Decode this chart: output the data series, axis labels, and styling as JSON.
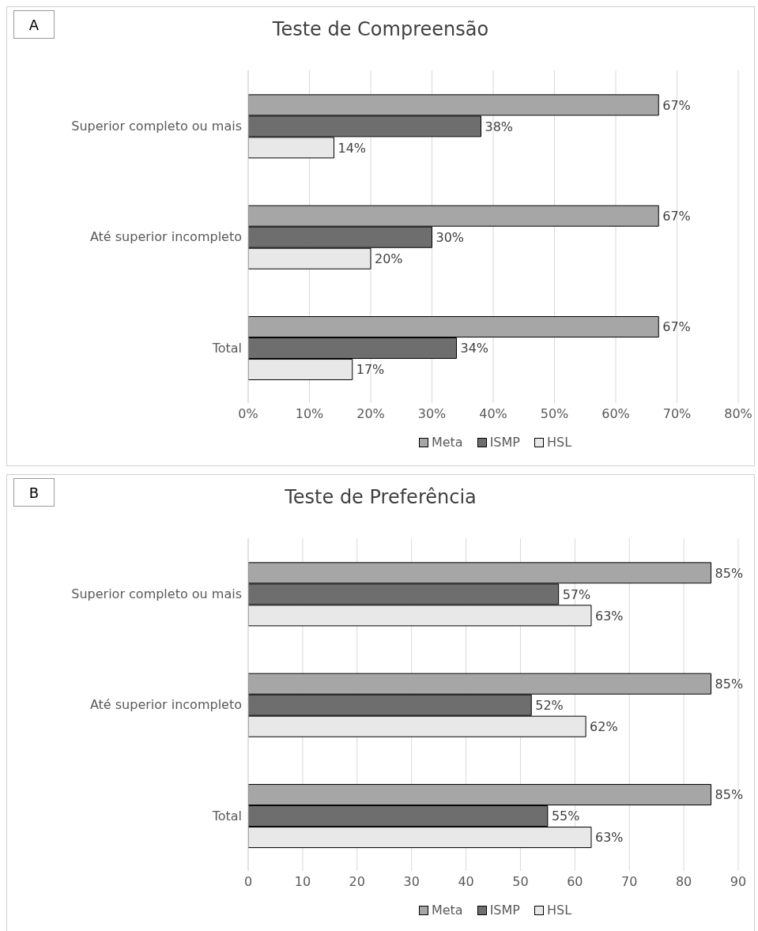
{
  "chart_data": [
    {
      "type": "bar",
      "orientation": "horizontal",
      "title": "Teste de Compreensão",
      "annotations": [
        "A"
      ],
      "categories": [
        "Superior completo ou mais",
        "Até superior incompleto",
        "Total"
      ],
      "series": [
        {
          "name": "Meta",
          "color": "#a6a6a6",
          "values": [
            67,
            67,
            67
          ],
          "value_labels": [
            "67%",
            "67%",
            "67%"
          ]
        },
        {
          "name": "ISMP",
          "color": "#6e6e6e",
          "values": [
            38,
            30,
            34
          ],
          "value_labels": [
            "38%",
            "30%",
            "34%"
          ]
        },
        {
          "name": "HSL",
          "color": "#e8e8e8",
          "values": [
            14,
            20,
            17
          ],
          "value_labels": [
            "14%",
            "20%",
            "17%"
          ]
        }
      ],
      "xlim": [
        0,
        80
      ],
      "xticks": [
        {
          "value": 0,
          "label": "0%"
        },
        {
          "value": 10,
          "label": "10%"
        },
        {
          "value": 20,
          "label": "20%"
        },
        {
          "value": 30,
          "label": "30%"
        },
        {
          "value": 40,
          "label": "40%"
        },
        {
          "value": 50,
          "label": "50%"
        },
        {
          "value": 60,
          "label": "60%"
        },
        {
          "value": 70,
          "label": "70%"
        },
        {
          "value": 80,
          "label": "80%"
        }
      ],
      "grid": "x",
      "legend": "bottom"
    },
    {
      "type": "bar",
      "orientation": "horizontal",
      "title": "Teste de Preferência",
      "annotations": [
        "B"
      ],
      "categories": [
        "Superior completo ou mais",
        "Até superior incompleto",
        "Total"
      ],
      "series": [
        {
          "name": "Meta",
          "color": "#a6a6a6",
          "values": [
            85,
            85,
            85
          ],
          "value_labels": [
            "85%",
            "85%",
            "85%"
          ]
        },
        {
          "name": "ISMP",
          "color": "#6e6e6e",
          "values": [
            57,
            52,
            55
          ],
          "value_labels": [
            "57%",
            "52%",
            "55%"
          ]
        },
        {
          "name": "HSL",
          "color": "#e8e8e8",
          "values": [
            63,
            62,
            63
          ],
          "value_labels": [
            "63%",
            "62%",
            "63%"
          ]
        }
      ],
      "xlim": [
        0,
        90
      ],
      "xticks": [
        0,
        10,
        20,
        30,
        40,
        50,
        60,
        70,
        80,
        90
      ],
      "grid": "x",
      "legend": "bottom"
    }
  ]
}
